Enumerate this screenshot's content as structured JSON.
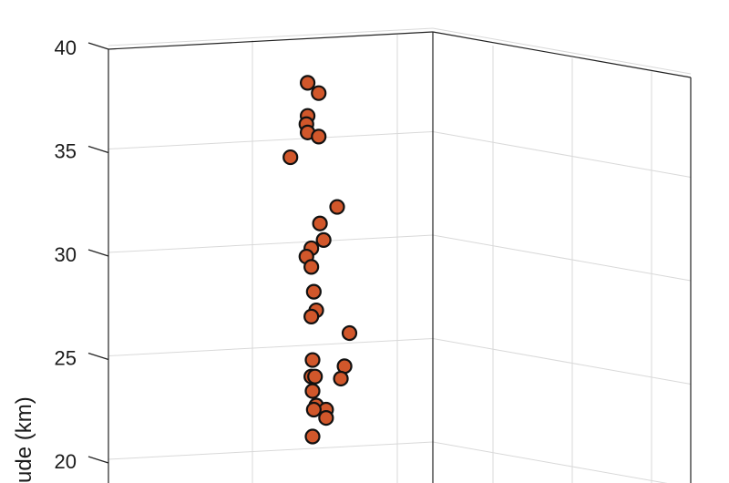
{
  "chart_data": {
    "type": "scatter",
    "projection": "3d",
    "ylabel": "ude (km)",
    "ylim": [
      20,
      40
    ],
    "yticks": [
      20,
      25,
      30,
      35,
      40
    ],
    "grid": true,
    "marker_color": "#d1572b",
    "marker_edge_color": "#111111",
    "points": [
      {
        "x": -0.2,
        "y": 38.2
      },
      {
        "x": 0.25,
        "y": 37.7
      },
      {
        "x": -0.2,
        "y": 36.6
      },
      {
        "x": -0.25,
        "y": 36.2
      },
      {
        "x": -0.2,
        "y": 35.8
      },
      {
        "x": 0.25,
        "y": 35.6
      },
      {
        "x": -0.9,
        "y": 34.6
      },
      {
        "x": 1.0,
        "y": 32.2
      },
      {
        "x": 0.3,
        "y": 31.4
      },
      {
        "x": 0.45,
        "y": 30.6
      },
      {
        "x": -0.05,
        "y": 30.2
      },
      {
        "x": -0.25,
        "y": 29.8
      },
      {
        "x": -0.05,
        "y": 29.3
      },
      {
        "x": 0.05,
        "y": 28.1
      },
      {
        "x": 0.15,
        "y": 27.2
      },
      {
        "x": -0.05,
        "y": 26.9
      },
      {
        "x": 1.5,
        "y": 26.1
      },
      {
        "x": 0.0,
        "y": 24.8
      },
      {
        "x": 1.3,
        "y": 24.5
      },
      {
        "x": -0.05,
        "y": 24.0
      },
      {
        "x": 1.15,
        "y": 23.9
      },
      {
        "x": 0.1,
        "y": 24.0
      },
      {
        "x": 0.0,
        "y": 23.3
      },
      {
        "x": 0.15,
        "y": 22.6
      },
      {
        "x": 0.55,
        "y": 22.4
      },
      {
        "x": 0.05,
        "y": 22.4
      },
      {
        "x": 0.55,
        "y": 22.0
      },
      {
        "x": 0.0,
        "y": 21.1
      }
    ]
  }
}
